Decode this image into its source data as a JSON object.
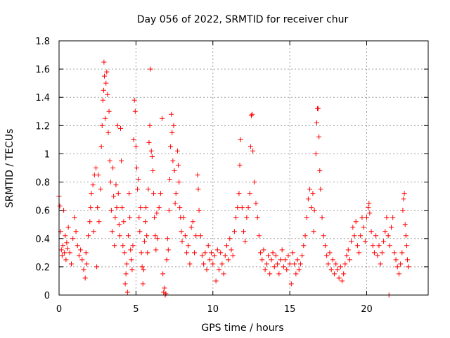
{
  "chart_data": {
    "type": "scatter",
    "title": "Day 056 of 2022, SRMTID for receiver chur",
    "xlabel": "GPS time / hours",
    "ylabel": "SRMTID / TECUs",
    "xlim": [
      0,
      24
    ],
    "ylim": [
      0,
      1.8
    ],
    "xticks": [
      0,
      5,
      10,
      15,
      20
    ],
    "xtick_labels": [
      "0",
      "5",
      "10",
      "15",
      "20"
    ],
    "yticks": [
      0,
      0.2,
      0.4,
      0.6,
      0.8,
      1,
      1.2,
      1.4,
      1.6,
      1.8
    ],
    "ytick_labels": [
      "0",
      "0.2",
      "0.4",
      "0.6",
      "0.8",
      "1",
      "1.2",
      "1.4",
      "1.6",
      "1.8"
    ],
    "grid": true,
    "marker": "plus",
    "color": "#ff0000",
    "series": [
      {
        "name": "SRMTID",
        "points": [
          [
            0.0,
            0.7
          ],
          [
            0.05,
            0.63
          ],
          [
            0.1,
            0.45
          ],
          [
            0.15,
            0.32
          ],
          [
            0.2,
            0.28
          ],
          [
            0.25,
            0.35
          ],
          [
            0.3,
            0.6
          ],
          [
            0.35,
            0.3
          ],
          [
            0.4,
            0.42
          ],
          [
            0.45,
            0.25
          ],
          [
            0.5,
            0.37
          ],
          [
            0.55,
            0.33
          ],
          [
            0.6,
            0.48
          ],
          [
            0.7,
            0.3
          ],
          [
            0.8,
            0.22
          ],
          [
            0.9,
            0.4
          ],
          [
            1.0,
            0.55
          ],
          [
            1.1,
            0.45
          ],
          [
            1.2,
            0.35
          ],
          [
            1.3,
            0.28
          ],
          [
            1.4,
            0.32
          ],
          [
            1.5,
            0.25
          ],
          [
            1.6,
            0.18
          ],
          [
            1.7,
            0.12
          ],
          [
            1.75,
            0.3
          ],
          [
            1.8,
            0.22
          ],
          [
            1.9,
            0.42
          ],
          [
            2.0,
            0.52
          ],
          [
            2.05,
            0.62
          ],
          [
            2.1,
            0.72
          ],
          [
            2.2,
            0.78
          ],
          [
            2.25,
            0.45
          ],
          [
            2.3,
            0.85
          ],
          [
            2.4,
            0.9
          ],
          [
            2.45,
            0.2
          ],
          [
            2.5,
            0.62
          ],
          [
            2.55,
            0.85
          ],
          [
            2.6,
            0.52
          ],
          [
            2.7,
            0.75
          ],
          [
            2.75,
            1.05
          ],
          [
            2.8,
            1.2
          ],
          [
            2.85,
            1.38
          ],
          [
            2.9,
            1.45
          ],
          [
            2.92,
            1.65
          ],
          [
            2.95,
            1.55
          ],
          [
            3.0,
            1.25
          ],
          [
            3.05,
            1.5
          ],
          [
            3.1,
            1.58
          ],
          [
            3.15,
            1.42
          ],
          [
            3.2,
            1.15
          ],
          [
            3.25,
            1.3
          ],
          [
            3.3,
            0.95
          ],
          [
            3.35,
            0.8
          ],
          [
            3.4,
            0.6
          ],
          [
            3.45,
            0.45
          ],
          [
            3.5,
            0.9
          ],
          [
            3.55,
            0.7
          ],
          [
            3.6,
            0.35
          ],
          [
            3.65,
            0.55
          ],
          [
            3.7,
            0.78
          ],
          [
            3.75,
            0.62
          ],
          [
            3.8,
            1.2
          ],
          [
            3.85,
            0.72
          ],
          [
            3.9,
            0.5
          ],
          [
            3.95,
            0.42
          ],
          [
            4.0,
            1.18
          ],
          [
            4.05,
            0.95
          ],
          [
            4.1,
            0.62
          ],
          [
            4.15,
            0.35
          ],
          [
            4.2,
            0.52
          ],
          [
            4.25,
            0.3
          ],
          [
            4.3,
            0.08
          ],
          [
            4.35,
            0.15
          ],
          [
            4.4,
            0.22
          ],
          [
            4.45,
            0.02
          ],
          [
            4.5,
            0.42
          ],
          [
            4.55,
            0.72
          ],
          [
            4.6,
            0.55
          ],
          [
            4.65,
            0.32
          ],
          [
            4.7,
            0.25
          ],
          [
            4.75,
            0.18
          ],
          [
            4.8,
            0.35
          ],
          [
            4.85,
            1.1
          ],
          [
            4.9,
            1.38
          ],
          [
            4.95,
            1.3
          ],
          [
            5.0,
            1.05
          ],
          [
            5.05,
            0.9
          ],
          [
            5.1,
            0.75
          ],
          [
            5.15,
            0.82
          ],
          [
            5.2,
            0.55
          ],
          [
            5.25,
            0.45
          ],
          [
            5.3,
            0.62
          ],
          [
            5.35,
            0.3
          ],
          [
            5.4,
            0.2
          ],
          [
            5.45,
            0.08
          ],
          [
            5.5,
            0.18
          ],
          [
            5.55,
            0.38
          ],
          [
            5.6,
            0.52
          ],
          [
            5.65,
            0.62
          ],
          [
            5.7,
            0.42
          ],
          [
            5.75,
            0.3
          ],
          [
            5.8,
            0.75
          ],
          [
            5.85,
            1.08
          ],
          [
            5.9,
            1.2
          ],
          [
            5.95,
            1.6
          ],
          [
            6.0,
            1.02
          ],
          [
            6.05,
            0.98
          ],
          [
            6.1,
            0.88
          ],
          [
            6.15,
            0.72
          ],
          [
            6.2,
            0.55
          ],
          [
            6.25,
            0.42
          ],
          [
            6.3,
            0.32
          ],
          [
            6.35,
            0.58
          ],
          [
            6.4,
            0.4
          ],
          [
            6.5,
            0.62
          ],
          [
            6.6,
            0.72
          ],
          [
            6.7,
            1.25
          ],
          [
            6.75,
            0.15
          ],
          [
            6.8,
            0.02
          ],
          [
            6.85,
            0.05
          ],
          [
            6.9,
            0.0
          ],
          [
            6.95,
            0.01
          ],
          [
            7.0,
            0.25
          ],
          [
            7.05,
            0.4
          ],
          [
            7.1,
            0.32
          ],
          [
            7.15,
            0.6
          ],
          [
            7.2,
            0.82
          ],
          [
            7.25,
            1.05
          ],
          [
            7.3,
            1.28
          ],
          [
            7.35,
            1.15
          ],
          [
            7.4,
            0.95
          ],
          [
            7.45,
            1.2
          ],
          [
            7.5,
            0.88
          ],
          [
            7.55,
            0.65
          ],
          [
            7.6,
            0.72
          ],
          [
            7.7,
            1.02
          ],
          [
            7.75,
            0.92
          ],
          [
            7.8,
            0.8
          ],
          [
            7.85,
            0.62
          ],
          [
            7.9,
            0.55
          ],
          [
            7.95,
            0.45
          ],
          [
            8.0,
            0.38
          ],
          [
            8.1,
            0.55
          ],
          [
            8.2,
            0.42
          ],
          [
            8.3,
            0.3
          ],
          [
            8.4,
            0.35
          ],
          [
            8.5,
            0.22
          ],
          [
            8.6,
            0.48
          ],
          [
            8.7,
            0.52
          ],
          [
            8.8,
            0.3
          ],
          [
            8.9,
            0.42
          ],
          [
            9.0,
            0.85
          ],
          [
            9.05,
            0.75
          ],
          [
            9.1,
            0.6
          ],
          [
            9.2,
            0.42
          ],
          [
            9.3,
            0.28
          ],
          [
            9.4,
            0.22
          ],
          [
            9.5,
            0.3
          ],
          [
            9.6,
            0.18
          ],
          [
            9.7,
            0.35
          ],
          [
            9.8,
            0.25
          ],
          [
            9.9,
            0.3
          ],
          [
            10.0,
            0.22
          ],
          [
            10.1,
            0.28
          ],
          [
            10.2,
            0.1
          ],
          [
            10.3,
            0.32
          ],
          [
            10.4,
            0.18
          ],
          [
            10.5,
            0.3
          ],
          [
            10.6,
            0.22
          ],
          [
            10.7,
            0.15
          ],
          [
            10.8,
            0.28
          ],
          [
            10.9,
            0.35
          ],
          [
            11.0,
            0.25
          ],
          [
            11.1,
            0.4
          ],
          [
            11.2,
            0.32
          ],
          [
            11.3,
            0.28
          ],
          [
            11.4,
            0.45
          ],
          [
            11.5,
            0.55
          ],
          [
            11.6,
            0.62
          ],
          [
            11.7,
            0.72
          ],
          [
            11.75,
            0.92
          ],
          [
            11.8,
            1.1
          ],
          [
            11.9,
            0.62
          ],
          [
            12.0,
            0.45
          ],
          [
            12.1,
            0.38
          ],
          [
            12.2,
            0.55
          ],
          [
            12.3,
            0.62
          ],
          [
            12.4,
            0.72
          ],
          [
            12.45,
            1.05
          ],
          [
            12.5,
            1.27
          ],
          [
            12.55,
            1.28
          ],
          [
            12.6,
            1.02
          ],
          [
            12.7,
            0.8
          ],
          [
            12.8,
            0.65
          ],
          [
            12.9,
            0.55
          ],
          [
            13.0,
            0.42
          ],
          [
            13.1,
            0.3
          ],
          [
            13.2,
            0.25
          ],
          [
            13.3,
            0.32
          ],
          [
            13.4,
            0.18
          ],
          [
            13.5,
            0.22
          ],
          [
            13.6,
            0.28
          ],
          [
            13.7,
            0.15
          ],
          [
            13.8,
            0.25
          ],
          [
            13.9,
            0.3
          ],
          [
            14.0,
            0.2
          ],
          [
            14.1,
            0.28
          ],
          [
            14.2,
            0.22
          ],
          [
            14.3,
            0.15
          ],
          [
            14.4,
            0.25
          ],
          [
            14.5,
            0.32
          ],
          [
            14.6,
            0.2
          ],
          [
            14.7,
            0.25
          ],
          [
            14.8,
            0.18
          ],
          [
            14.9,
            0.28
          ],
          [
            15.0,
            0.22
          ],
          [
            15.1,
            0.08
          ],
          [
            15.2,
            0.3
          ],
          [
            15.3,
            0.22
          ],
          [
            15.4,
            0.15
          ],
          [
            15.5,
            0.25
          ],
          [
            15.6,
            0.18
          ],
          [
            15.7,
            0.22
          ],
          [
            15.8,
            0.28
          ],
          [
            15.9,
            0.35
          ],
          [
            16.0,
            0.42
          ],
          [
            16.1,
            0.55
          ],
          [
            16.2,
            0.68
          ],
          [
            16.3,
            0.75
          ],
          [
            16.4,
            0.62
          ],
          [
            16.5,
            0.72
          ],
          [
            16.55,
            0.45
          ],
          [
            16.6,
            0.6
          ],
          [
            16.7,
            1.0
          ],
          [
            16.75,
            1.22
          ],
          [
            16.8,
            1.32
          ],
          [
            16.85,
            1.32
          ],
          [
            16.9,
            1.12
          ],
          [
            16.95,
            0.88
          ],
          [
            17.0,
            0.75
          ],
          [
            17.1,
            0.55
          ],
          [
            17.2,
            0.42
          ],
          [
            17.3,
            0.35
          ],
          [
            17.4,
            0.28
          ],
          [
            17.5,
            0.22
          ],
          [
            17.6,
            0.3
          ],
          [
            17.7,
            0.18
          ],
          [
            17.8,
            0.25
          ],
          [
            17.9,
            0.15
          ],
          [
            18.0,
            0.22
          ],
          [
            18.1,
            0.18
          ],
          [
            18.2,
            0.12
          ],
          [
            18.3,
            0.2
          ],
          [
            18.4,
            0.1
          ],
          [
            18.5,
            0.15
          ],
          [
            18.6,
            0.22
          ],
          [
            18.7,
            0.28
          ],
          [
            18.8,
            0.32
          ],
          [
            18.9,
            0.25
          ],
          [
            19.0,
            0.38
          ],
          [
            19.1,
            0.48
          ],
          [
            19.2,
            0.42
          ],
          [
            19.3,
            0.52
          ],
          [
            19.4,
            0.35
          ],
          [
            19.5,
            0.3
          ],
          [
            19.6,
            0.42
          ],
          [
            19.7,
            0.55
          ],
          [
            19.8,
            0.48
          ],
          [
            19.9,
            0.38
          ],
          [
            20.0,
            0.55
          ],
          [
            20.1,
            0.62
          ],
          [
            20.15,
            0.65
          ],
          [
            20.2,
            0.58
          ],
          [
            20.3,
            0.45
          ],
          [
            20.4,
            0.35
          ],
          [
            20.5,
            0.3
          ],
          [
            20.6,
            0.42
          ],
          [
            20.7,
            0.28
          ],
          [
            20.8,
            0.35
          ],
          [
            20.9,
            0.22
          ],
          [
            21.0,
            0.3
          ],
          [
            21.1,
            0.38
          ],
          [
            21.2,
            0.45
          ],
          [
            21.3,
            0.55
          ],
          [
            21.4,
            0.42
          ],
          [
            21.45,
            0.0
          ],
          [
            21.5,
            0.35
          ],
          [
            21.6,
            0.48
          ],
          [
            21.7,
            0.55
          ],
          [
            21.8,
            0.3
          ],
          [
            21.9,
            0.25
          ],
          [
            22.0,
            0.2
          ],
          [
            22.1,
            0.15
          ],
          [
            22.2,
            0.22
          ],
          [
            22.3,
            0.3
          ],
          [
            22.35,
            0.6
          ],
          [
            22.4,
            0.68
          ],
          [
            22.45,
            0.72
          ],
          [
            22.5,
            0.5
          ],
          [
            22.55,
            0.42
          ],
          [
            22.6,
            0.35
          ],
          [
            22.65,
            0.25
          ],
          [
            22.7,
            0.2
          ]
        ]
      }
    ]
  }
}
